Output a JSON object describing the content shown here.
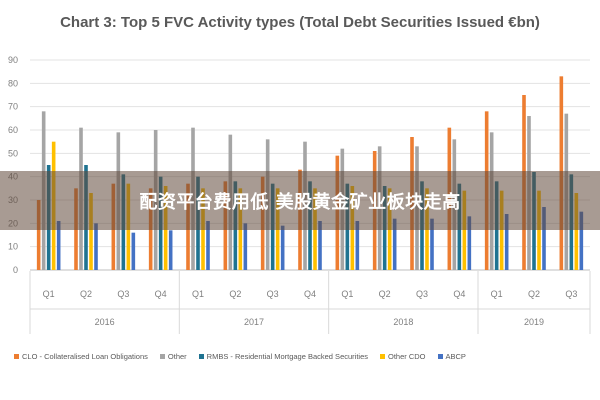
{
  "chart_data": {
    "type": "bar",
    "title": "Chart 3: Top 5 FVC Activity types (Total Debt Securities Issued €bn)",
    "xlabel": "",
    "ylabel": "",
    "ylim": [
      0,
      90
    ],
    "yticks": [
      0,
      10,
      20,
      30,
      40,
      50,
      60,
      70,
      80,
      90
    ],
    "grid": true,
    "legend_position": "bottom",
    "categories": [
      "Q1",
      "Q2",
      "Q3",
      "Q4",
      "Q1",
      "Q2",
      "Q3",
      "Q4",
      "Q1",
      "Q2",
      "Q3",
      "Q4",
      "Q1",
      "Q2",
      "Q3"
    ],
    "groups": [
      {
        "label": "2016",
        "span": 4
      },
      {
        "label": "2017",
        "span": 4
      },
      {
        "label": "2018",
        "span": 4
      },
      {
        "label": "2019",
        "span": 3
      }
    ],
    "series": [
      {
        "name": "CLO - Collateralised Loan Obligations",
        "color": "#ED7D31",
        "values": [
          30,
          35,
          37,
          35,
          37,
          38,
          40,
          43,
          49,
          51,
          57,
          61,
          68,
          75,
          83
        ]
      },
      {
        "name": "Other",
        "color": "#A5A5A5",
        "values": [
          68,
          61,
          59,
          60,
          61,
          58,
          56,
          55,
          52,
          53,
          53,
          56,
          59,
          66,
          67
        ]
      },
      {
        "name": "RMBS - Residential Mortgage Backed Securities",
        "color": "#1F7391",
        "values": [
          45,
          45,
          41,
          40,
          40,
          38,
          37,
          38,
          37,
          36,
          38,
          37,
          38,
          42,
          41
        ]
      },
      {
        "name": "Other CDO",
        "color": "#FFC000",
        "values": [
          55,
          33,
          37,
          36,
          35,
          35,
          35,
          35,
          36,
          35,
          35,
          34,
          34,
          34,
          33
        ]
      },
      {
        "name": "ABCP",
        "color": "#4472C4",
        "values": [
          21,
          20,
          16,
          17,
          21,
          20,
          19,
          21,
          21,
          22,
          22,
          23,
          24,
          27,
          25
        ]
      }
    ]
  },
  "overlay": {
    "text": "配资平台费用低 美股黄金矿业板块走高"
  }
}
